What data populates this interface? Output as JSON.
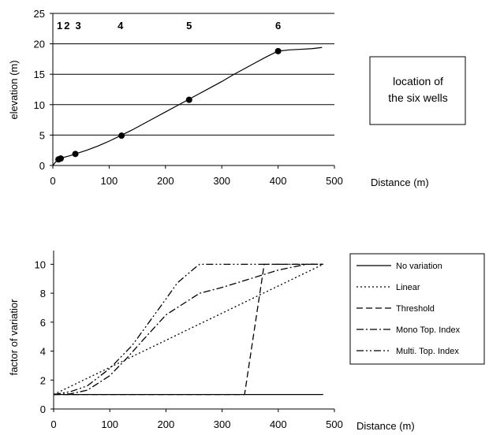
{
  "chart_data": [
    {
      "type": "line",
      "xlabel": "Distance  (m)",
      "ylabel": "elevation (m)",
      "xlim": [
        0,
        500
      ],
      "ylim": [
        0,
        25
      ],
      "xticks": [
        0,
        100,
        200,
        300,
        400,
        500
      ],
      "yticks": [
        0,
        5,
        10,
        15,
        20,
        25
      ],
      "grid": "horizontal",
      "series": [
        {
          "x": [
            0,
            5,
            10,
            15,
            20,
            30,
            40,
            60,
            80,
            100,
            120,
            140,
            160,
            180,
            200,
            220,
            240,
            260,
            280,
            300,
            320,
            340,
            360,
            380,
            400,
            420,
            440,
            460,
            478
          ],
          "values": [
            0,
            0.6,
            1.0,
            1.15,
            1.35,
            1.6,
            1.9,
            2.5,
            3.2,
            4.0,
            4.9,
            5.8,
            6.8,
            7.8,
            8.8,
            9.8,
            10.8,
            11.8,
            12.8,
            13.8,
            14.9,
            15.9,
            16.9,
            17.9,
            18.8,
            19.0,
            19.1,
            19.2,
            19.4
          ]
        }
      ],
      "points": {
        "x": [
          10,
          14,
          40,
          122,
          242,
          400
        ],
        "y": [
          1.0,
          1.15,
          1.9,
          4.9,
          10.8,
          18.8
        ]
      },
      "well_labels": [
        {
          "text": "1",
          "x": 12
        },
        {
          "text": "2",
          "x": 25
        },
        {
          "text": "3",
          "x": 45
        },
        {
          "text": "4",
          "x": 120
        },
        {
          "text": "5",
          "x": 242
        },
        {
          "text": "6",
          "x": 400
        }
      ],
      "annotation": [
        "location of",
        "the six wells"
      ]
    },
    {
      "type": "line",
      "xlabel": "Distance  (m)",
      "ylabel": "factor of variatior",
      "xlim": [
        0,
        500
      ],
      "ylim": [
        0,
        11
      ],
      "xticks": [
        0,
        100,
        200,
        300,
        400,
        500
      ],
      "yticks": [
        0,
        2,
        4,
        6,
        8,
        10
      ],
      "legend_position": "right",
      "series": [
        {
          "name": "No variation",
          "dash": "solid",
          "x": [
            0,
            480
          ],
          "values": [
            1,
            1
          ]
        },
        {
          "name": "Linear",
          "dash": "dotted",
          "x": [
            0,
            480
          ],
          "values": [
            1,
            10
          ]
        },
        {
          "name": "Threshold",
          "dash": "dashed",
          "x": [
            0,
            340,
            375,
            400,
            480
          ],
          "values": [
            1,
            1,
            10,
            10,
            10
          ]
        },
        {
          "name": "Mono Top. Index",
          "dash": "dashdot",
          "x": [
            0,
            30,
            60,
            100,
            130,
            160,
            200,
            240,
            260,
            300,
            350,
            400,
            450,
            480
          ],
          "values": [
            1,
            1.05,
            1.3,
            2.3,
            3.5,
            4.8,
            6.5,
            7.5,
            8.0,
            8.4,
            9.0,
            9.6,
            10,
            10
          ]
        },
        {
          "name": "Multi. Top. Index",
          "dash": "dashdotdot",
          "x": [
            0,
            30,
            60,
            100,
            140,
            170,
            200,
            220,
            250,
            260,
            300,
            400,
            480
          ],
          "values": [
            1,
            1.2,
            1.6,
            2.8,
            4.4,
            6.0,
            7.6,
            8.7,
            9.7,
            10,
            10,
            10,
            10
          ]
        }
      ]
    }
  ]
}
